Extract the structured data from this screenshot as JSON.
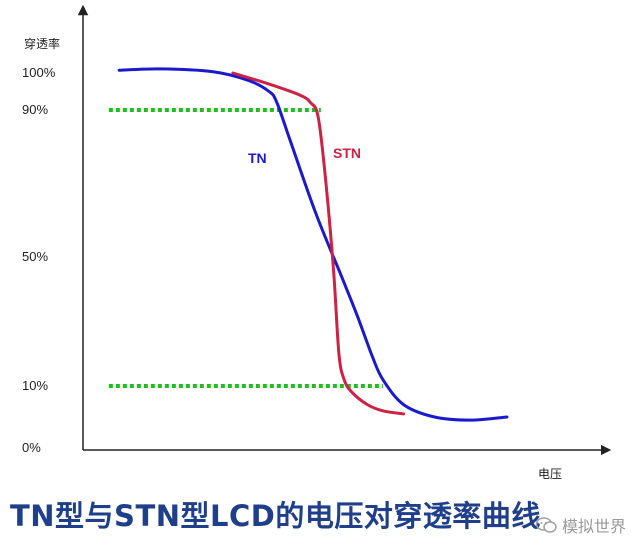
{
  "chart_data": {
    "type": "line",
    "ylabel": "穿透率",
    "xlabel": "电压",
    "yticks": [
      {
        "label": "100%",
        "value": 100
      },
      {
        "label": "90%",
        "value": 90
      },
      {
        "label": "50%",
        "value": 50
      },
      {
        "label": "10%",
        "value": 10
      },
      {
        "label": "0%",
        "value": 0
      }
    ],
    "xlim": [
      0,
      10
    ],
    "ylim": [
      -5,
      112
    ],
    "reference_lines": [
      {
        "y": 90,
        "x_from": 0.5,
        "x_to": 4.6,
        "style": "dotted",
        "color": "#22bb22"
      },
      {
        "y": 10,
        "x_from": 0.5,
        "x_to": 5.8,
        "style": "dotted",
        "color": "#22bb22"
      }
    ],
    "series": [
      {
        "name": "TN",
        "color": "#1a1acc",
        "x": [
          0.7,
          1.5,
          2.5,
          3.2,
          3.6,
          3.75,
          4.0,
          4.5,
          5.0,
          5.3,
          5.6,
          5.8,
          6.2,
          6.8,
          7.5,
          8.2
        ],
        "y": [
          101,
          101.5,
          100.5,
          98,
          95,
          92,
          82,
          62,
          44,
          32,
          19,
          12,
          7,
          5,
          4.5,
          5
        ]
      },
      {
        "name": "STN",
        "color": "#cc2244",
        "x": [
          2.9,
          3.6,
          4.2,
          4.4,
          4.55,
          4.7,
          4.85,
          4.95,
          5.05,
          5.2,
          5.5,
          5.8,
          6.2
        ],
        "y": [
          100,
          97,
          94,
          92,
          88,
          70,
          45,
          20,
          12,
          9,
          7,
          6,
          5.5
        ]
      }
    ]
  },
  "caption": "TN型与STN型LCD的电压对穿透率曲线",
  "watermark": {
    "icon": "speech-bubble-icon",
    "text": "模拟世界"
  }
}
